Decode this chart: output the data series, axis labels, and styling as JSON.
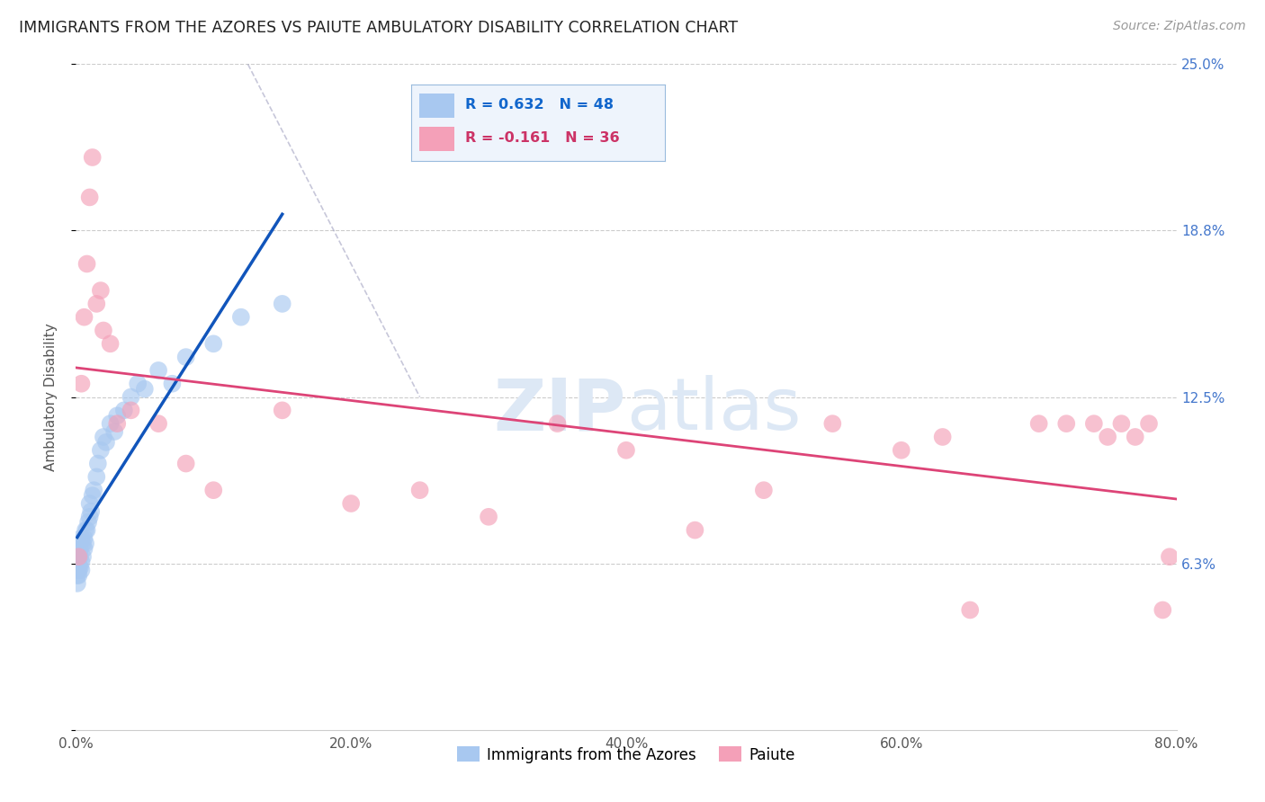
{
  "title": "IMMIGRANTS FROM THE AZORES VS PAIUTE AMBULATORY DISABILITY CORRELATION CHART",
  "source": "Source: ZipAtlas.com",
  "xlabel_blue": "Immigrants from the Azores",
  "xlabel_pink": "Paiute",
  "ylabel": "Ambulatory Disability",
  "r_blue": 0.632,
  "n_blue": 48,
  "r_pink": -0.161,
  "n_pink": 36,
  "xlim": [
    0,
    0.8
  ],
  "ylim": [
    0,
    0.25
  ],
  "yticks": [
    0.0,
    0.0625,
    0.125,
    0.1875,
    0.25
  ],
  "ytick_labels": [
    "",
    "6.3%",
    "12.5%",
    "18.8%",
    "25.0%"
  ],
  "xticks": [
    0.0,
    0.2,
    0.4,
    0.6,
    0.8
  ],
  "xtick_labels": [
    "0.0%",
    "20.0%",
    "40.0%",
    "60.0%",
    "80.0%"
  ],
  "color_blue": "#a8c8f0",
  "color_pink": "#f4a0b8",
  "line_color_blue": "#1155bb",
  "line_color_pink": "#dd4477",
  "legend_text_color_blue": "#1166cc",
  "legend_text_color_pink": "#cc3366",
  "watermark_color": "#dde8f5",
  "blue_scatter_x": [
    0.001,
    0.001,
    0.001,
    0.001,
    0.001,
    0.001,
    0.001,
    0.002,
    0.002,
    0.002,
    0.002,
    0.003,
    0.003,
    0.003,
    0.004,
    0.004,
    0.004,
    0.005,
    0.005,
    0.006,
    0.006,
    0.007,
    0.007,
    0.008,
    0.009,
    0.01,
    0.01,
    0.011,
    0.012,
    0.013,
    0.015,
    0.016,
    0.018,
    0.02,
    0.022,
    0.025,
    0.028,
    0.03,
    0.035,
    0.04,
    0.045,
    0.05,
    0.06,
    0.07,
    0.08,
    0.1,
    0.12,
    0.15
  ],
  "blue_scatter_y": [
    0.058,
    0.06,
    0.063,
    0.065,
    0.068,
    0.07,
    0.055,
    0.06,
    0.062,
    0.066,
    0.058,
    0.061,
    0.065,
    0.068,
    0.06,
    0.063,
    0.072,
    0.065,
    0.07,
    0.068,
    0.072,
    0.07,
    0.075,
    0.075,
    0.078,
    0.08,
    0.085,
    0.082,
    0.088,
    0.09,
    0.095,
    0.1,
    0.105,
    0.11,
    0.108,
    0.115,
    0.112,
    0.118,
    0.12,
    0.125,
    0.13,
    0.128,
    0.135,
    0.13,
    0.14,
    0.145,
    0.155,
    0.16
  ],
  "pink_scatter_x": [
    0.002,
    0.004,
    0.006,
    0.008,
    0.01,
    0.012,
    0.015,
    0.018,
    0.02,
    0.025,
    0.03,
    0.04,
    0.06,
    0.08,
    0.1,
    0.15,
    0.2,
    0.25,
    0.3,
    0.35,
    0.4,
    0.45,
    0.5,
    0.55,
    0.6,
    0.63,
    0.65,
    0.7,
    0.72,
    0.74,
    0.75,
    0.76,
    0.77,
    0.78,
    0.79,
    0.795
  ],
  "pink_scatter_y": [
    0.065,
    0.13,
    0.155,
    0.175,
    0.2,
    0.215,
    0.16,
    0.165,
    0.15,
    0.145,
    0.115,
    0.12,
    0.115,
    0.1,
    0.09,
    0.12,
    0.085,
    0.09,
    0.08,
    0.115,
    0.105,
    0.075,
    0.09,
    0.115,
    0.105,
    0.11,
    0.045,
    0.115,
    0.115,
    0.115,
    0.11,
    0.115,
    0.11,
    0.115,
    0.045,
    0.065
  ],
  "diag_line_start_x": 0.125,
  "diag_line_start_y": 0.25,
  "diag_line_end_x": 0.25,
  "diag_line_end_y": 0.125
}
